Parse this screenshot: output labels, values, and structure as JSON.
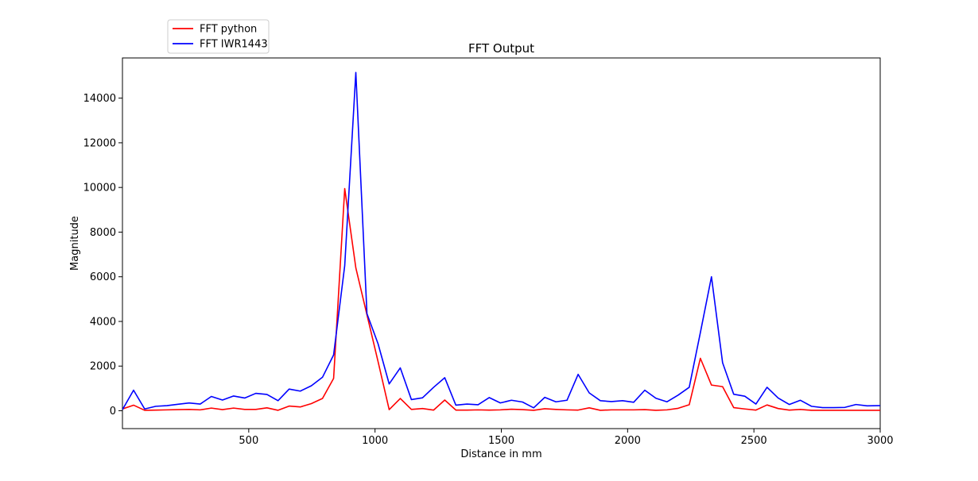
{
  "chart_data": {
    "type": "line",
    "title": "FFT Output",
    "xlabel": "Distance in mm",
    "ylabel": "Magnitude",
    "xlim": [
      0,
      3000
    ],
    "ylim": [
      -800,
      15800
    ],
    "xticks": [
      500,
      1000,
      1500,
      2000,
      2500,
      3000
    ],
    "yticks": [
      0,
      2000,
      4000,
      6000,
      8000,
      10000,
      12000,
      14000
    ],
    "legend_position": "top-left, outside plot",
    "grid": false,
    "x": [
      0,
      44,
      88,
      132,
      176,
      220,
      264,
      308,
      352,
      396,
      440,
      484,
      528,
      572,
      616,
      660,
      704,
      748,
      792,
      836,
      880,
      924,
      968,
      1012,
      1056,
      1100,
      1144,
      1188,
      1232,
      1276,
      1320,
      1364,
      1408,
      1452,
      1496,
      1540,
      1584,
      1628,
      1672,
      1716,
      1760,
      1804,
      1848,
      1892,
      1936,
      1980,
      2024,
      2068,
      2112,
      2156,
      2200,
      2244,
      2288,
      2332,
      2376,
      2420,
      2464,
      2508,
      2552,
      2596,
      2640,
      2684,
      2728,
      2772,
      2816,
      2860,
      2904,
      2948,
      2992,
      3000
    ],
    "series": [
      {
        "name": "FFT python",
        "color": "#ff0000",
        "values": [
          80,
          250,
          20,
          30,
          40,
          50,
          60,
          40,
          120,
          50,
          120,
          60,
          60,
          130,
          20,
          210,
          170,
          320,
          550,
          1450,
          9950,
          6400,
          4300,
          2200,
          50,
          550,
          60,
          100,
          30,
          480,
          30,
          30,
          40,
          30,
          40,
          70,
          50,
          20,
          90,
          60,
          40,
          30,
          130,
          20,
          40,
          40,
          40,
          50,
          20,
          40,
          110,
          270,
          2350,
          1150,
          1080,
          140,
          80,
          30,
          260,
          100,
          30,
          60,
          20,
          20,
          20,
          20,
          20,
          20,
          20,
          20
        ]
      },
      {
        "name": "FFT IWR1443",
        "color": "#0000ff",
        "values": [
          50,
          920,
          80,
          200,
          230,
          290,
          350,
          300,
          640,
          480,
          660,
          570,
          780,
          730,
          450,
          970,
          880,
          1120,
          1500,
          2500,
          6500,
          15150,
          4350,
          3000,
          1200,
          1920,
          500,
          580,
          1050,
          1480,
          250,
          300,
          270,
          590,
          350,
          470,
          390,
          130,
          600,
          400,
          470,
          1630,
          800,
          450,
          410,
          450,
          380,
          920,
          560,
          400,
          700,
          1050,
          3500,
          6000,
          2150,
          740,
          650,
          300,
          1050,
          570,
          280,
          470,
          200,
          140,
          140,
          150,
          280,
          220,
          230,
          230
        ]
      }
    ]
  }
}
